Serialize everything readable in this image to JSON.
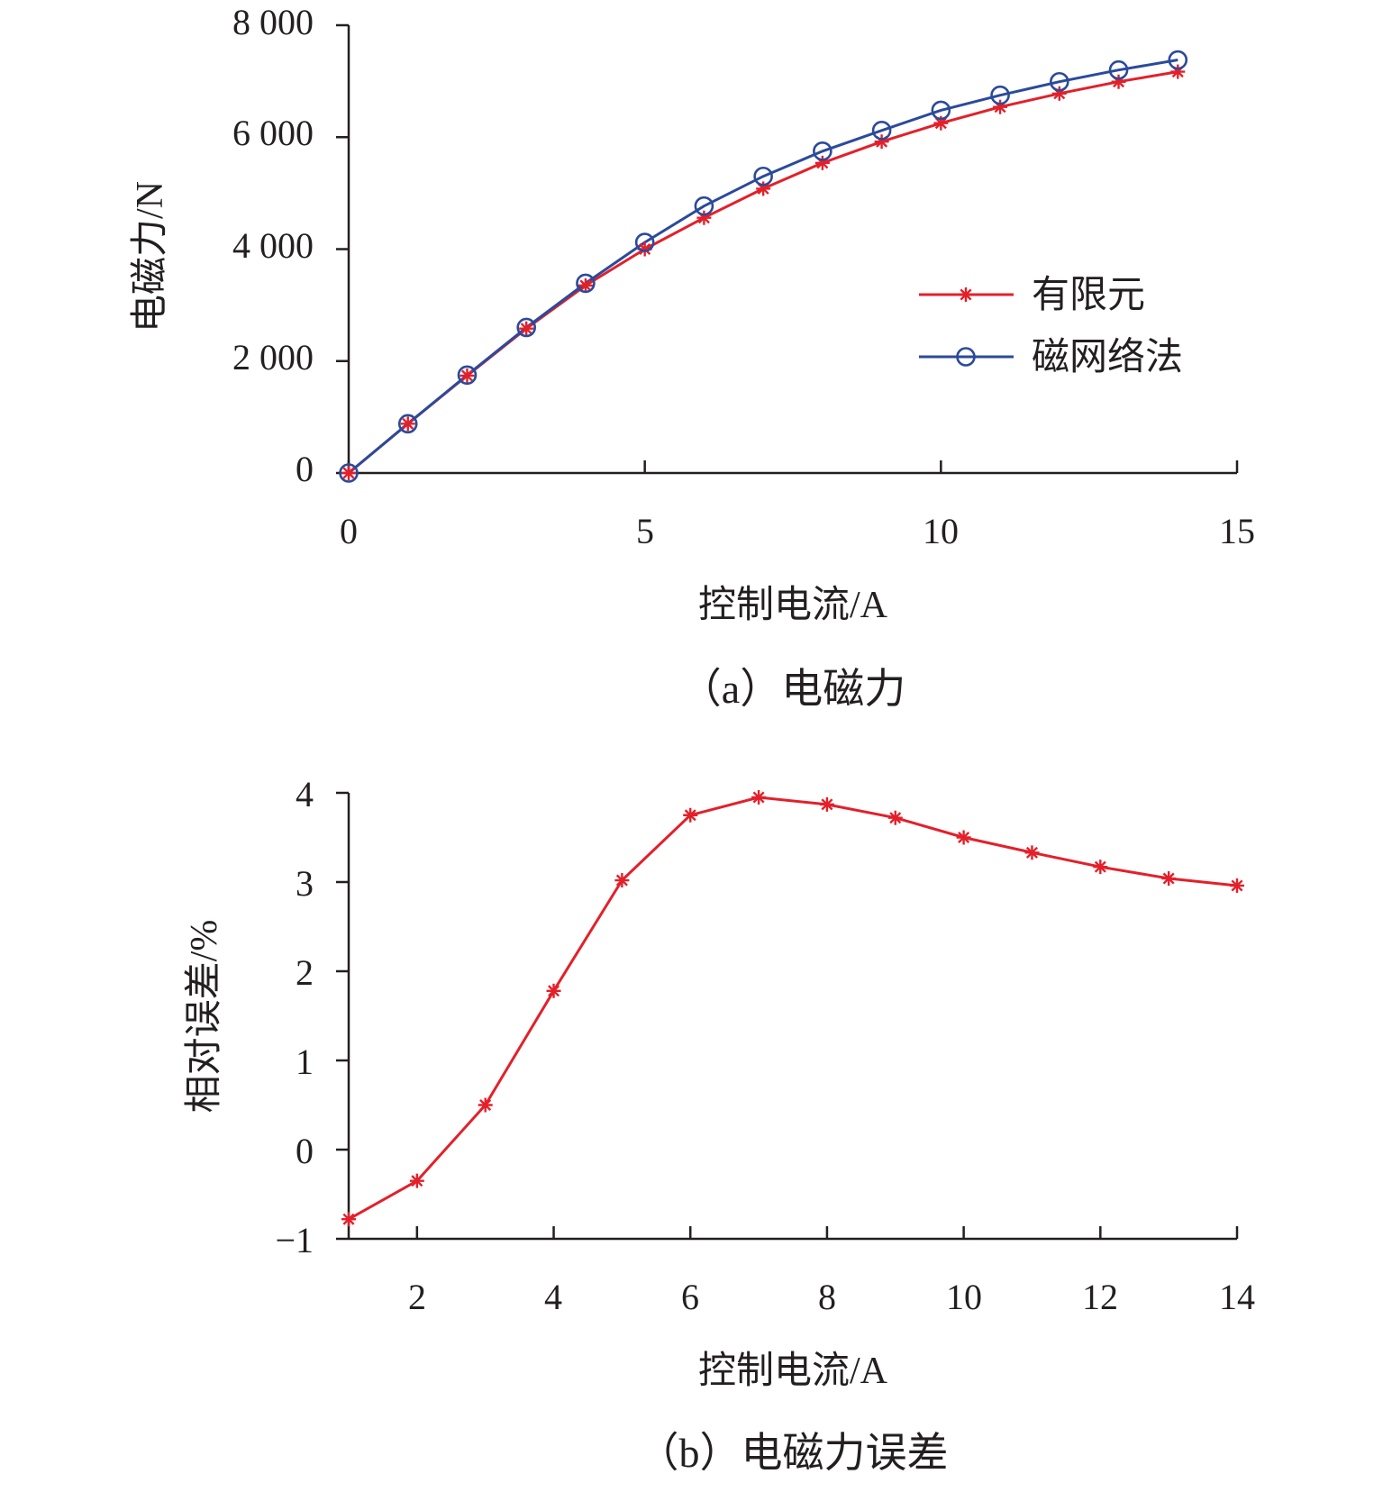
{
  "chart_data": [
    {
      "type": "line",
      "caption": "（a）电磁力",
      "xlabel": "控制电流/A",
      "ylabel": "电磁力/N",
      "xlim": [
        0,
        15
      ],
      "ylim": [
        0,
        8000
      ],
      "xticks": [
        "0",
        "5",
        "10",
        "15"
      ],
      "yticks": [
        "0",
        "2 000",
        "4 000",
        "6 000",
        "8 000"
      ],
      "legend_position": "right",
      "x": [
        0,
        1,
        2,
        3,
        4,
        5,
        6,
        7,
        8,
        9,
        10,
        11,
        12,
        13,
        14
      ],
      "series": [
        {
          "name": "有限元",
          "color": "#e3202a",
          "marker": "asterisk",
          "values": [
            0,
            880,
            1740,
            2580,
            3350,
            4000,
            4560,
            5080,
            5540,
            5920,
            6250,
            6540,
            6780,
            6990,
            7170
          ]
        },
        {
          "name": "磁网络法",
          "color": "#2b4a9b",
          "marker": "circle",
          "values": [
            0,
            880,
            1750,
            2600,
            3390,
            4120,
            4770,
            5300,
            5750,
            6120,
            6480,
            6750,
            6990,
            7200,
            7380
          ]
        }
      ]
    },
    {
      "type": "line",
      "caption": "（b）电磁力误差",
      "xlabel": "控制电流/A",
      "ylabel": "相对误差/%",
      "xlim": [
        1,
        14
      ],
      "ylim": [
        -1,
        4
      ],
      "xticks": [
        "2",
        "4",
        "6",
        "8",
        "10",
        "12",
        "14"
      ],
      "yticks": [
        "−1",
        "0",
        "1",
        "2",
        "3",
        "4"
      ],
      "x": [
        1,
        2,
        3,
        4,
        5,
        6,
        7,
        8,
        9,
        10,
        11,
        12,
        13,
        14
      ],
      "series": [
        {
          "color": "#e3202a",
          "marker": "asterisk",
          "values": [
            -0.78,
            -0.35,
            0.5,
            1.78,
            3.02,
            3.75,
            3.95,
            3.87,
            3.72,
            3.5,
            3.33,
            3.17,
            3.04,
            2.96
          ]
        }
      ]
    }
  ]
}
